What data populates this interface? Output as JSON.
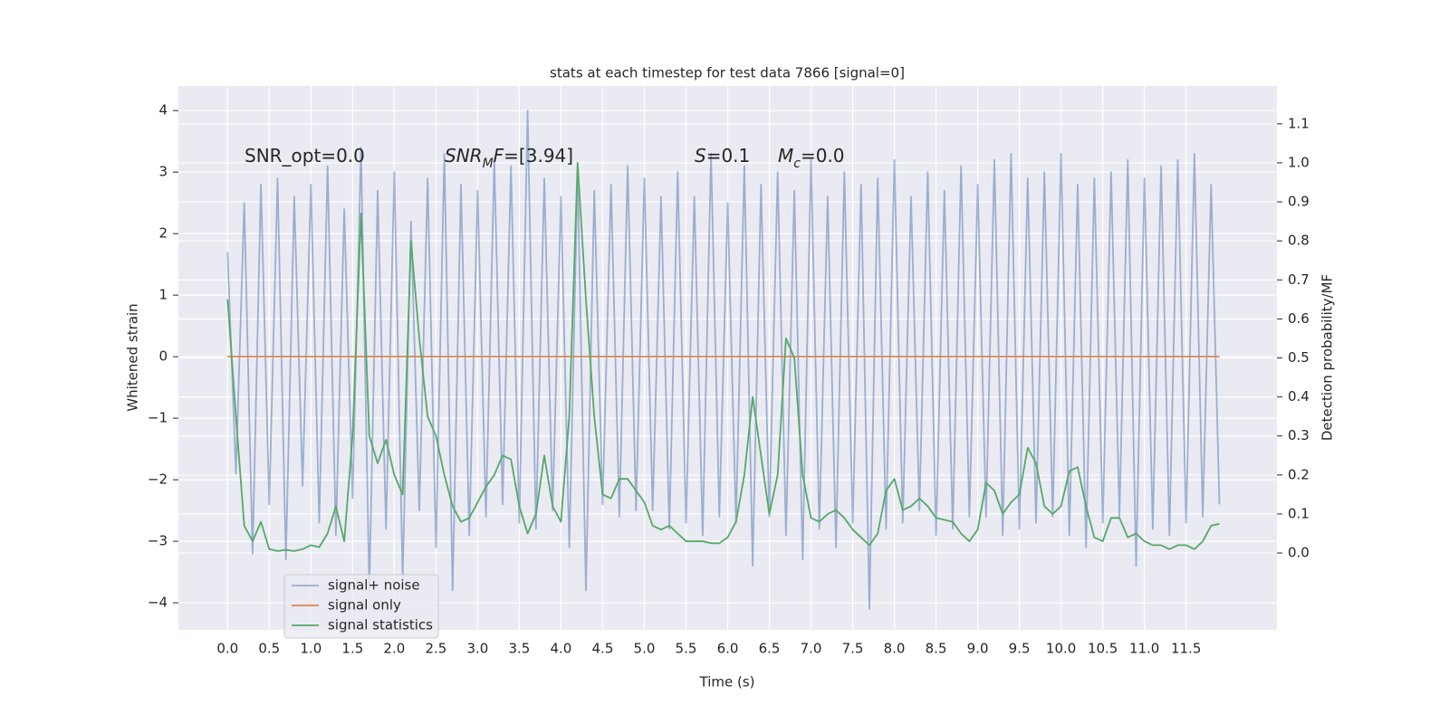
{
  "chart_data": {
    "type": "line",
    "title": "stats at each timestep for test data 7866 [signal=0]",
    "xlabel": "Time (s)",
    "ylabel": "Whitened strain",
    "y2label": "Detection probability/MF",
    "x": [
      0.0,
      0.1,
      0.2,
      0.3,
      0.4,
      0.5,
      0.6,
      0.7,
      0.8,
      0.9,
      1.0,
      1.1,
      1.2,
      1.3,
      1.4,
      1.5,
      1.6,
      1.7,
      1.8,
      1.9,
      2.0,
      2.1,
      2.2,
      2.3,
      2.4,
      2.5,
      2.6,
      2.7,
      2.8,
      2.9,
      3.0,
      3.1,
      3.2,
      3.3,
      3.4,
      3.5,
      3.6,
      3.7,
      3.8,
      3.9,
      4.0,
      4.1,
      4.2,
      4.3,
      4.4,
      4.5,
      4.6,
      4.7,
      4.8,
      4.9,
      5.0,
      5.1,
      5.2,
      5.3,
      5.4,
      5.5,
      5.6,
      5.7,
      5.8,
      5.9,
      6.0,
      6.1,
      6.2,
      6.3,
      6.4,
      6.5,
      6.6,
      6.7,
      6.8,
      6.9,
      7.0,
      7.1,
      7.2,
      7.3,
      7.4,
      7.5,
      7.6,
      7.7,
      7.8,
      7.9,
      8.0,
      8.1,
      8.2,
      8.3,
      8.4,
      8.5,
      8.6,
      8.7,
      8.8,
      8.9,
      9.0,
      9.1,
      9.2,
      9.3,
      9.4,
      9.5,
      9.6,
      9.7,
      9.8,
      9.9,
      10.0,
      10.1,
      10.2,
      10.3,
      10.4,
      10.5,
      10.6,
      10.7,
      10.8,
      10.9,
      11.0,
      11.1,
      11.2,
      11.3,
      11.4,
      11.5,
      11.6,
      11.7,
      11.8,
      11.9
    ],
    "series": [
      {
        "name": "signal+ noise",
        "color": "#4c72b0",
        "opacity": 0.5,
        "axis": "y",
        "values": [
          1.7,
          -1.9,
          2.5,
          -3.2,
          2.8,
          -2.4,
          2.9,
          -3.3,
          2.6,
          -2.1,
          2.8,
          -2.7,
          3.1,
          -2.9,
          2.4,
          -2.3,
          3.4,
          -3.8,
          2.7,
          -2.8,
          3.0,
          -3.6,
          2.2,
          -2.5,
          2.9,
          -3.1,
          3.3,
          -3.8,
          2.8,
          -2.9,
          2.7,
          -2.6,
          3.2,
          -2.4,
          3.1,
          -2.7,
          4.0,
          -2.8,
          2.9,
          -2.5,
          2.6,
          -3.1,
          3.0,
          -3.8,
          2.7,
          -2.4,
          2.8,
          -2.6,
          3.1,
          -2.5,
          2.9,
          -2.5,
          2.6,
          -2.8,
          3.0,
          -2.7,
          2.6,
          -2.9,
          3.3,
          -2.6,
          2.5,
          -2.7,
          3.1,
          -3.4,
          2.8,
          -2.6,
          3.0,
          -2.9,
          2.7,
          -3.3,
          3.2,
          -2.8,
          2.6,
          -3.1,
          3.0,
          -2.7,
          2.8,
          -4.1,
          2.9,
          -2.8,
          3.2,
          -2.7,
          2.6,
          -2.5,
          3.0,
          -2.9,
          2.7,
          -2.8,
          3.1,
          -2.6,
          2.8,
          -2.6,
          3.2,
          -2.9,
          3.3,
          -2.8,
          2.9,
          -2.7,
          3.0,
          -2.6,
          3.3,
          -2.9,
          2.8,
          -3.1,
          2.9,
          -2.7,
          3.0,
          -2.6,
          3.2,
          -3.4,
          2.9,
          -2.8,
          3.1,
          -2.9,
          3.2,
          -2.7,
          3.3,
          -2.6,
          2.8,
          -2.4
        ]
      },
      {
        "name": "signal only",
        "color": "#dd8452",
        "opacity": 1,
        "axis": "y",
        "values": [
          0,
          0,
          0,
          0,
          0,
          0,
          0,
          0,
          0,
          0,
          0,
          0,
          0,
          0,
          0,
          0,
          0,
          0,
          0,
          0,
          0,
          0,
          0,
          0,
          0,
          0,
          0,
          0,
          0,
          0,
          0,
          0,
          0,
          0,
          0,
          0,
          0,
          0,
          0,
          0,
          0,
          0,
          0,
          0,
          0,
          0,
          0,
          0,
          0,
          0,
          0,
          0,
          0,
          0,
          0,
          0,
          0,
          0,
          0,
          0,
          0,
          0,
          0,
          0,
          0,
          0,
          0,
          0,
          0,
          0,
          0,
          0,
          0,
          0,
          0,
          0,
          0,
          0,
          0,
          0,
          0,
          0,
          0,
          0,
          0,
          0,
          0,
          0,
          0,
          0,
          0,
          0,
          0,
          0,
          0,
          0,
          0,
          0,
          0,
          0,
          0,
          0,
          0,
          0,
          0,
          0,
          0,
          0,
          0,
          0,
          0,
          0,
          0,
          0,
          0,
          0,
          0,
          0,
          0,
          0
        ]
      },
      {
        "name": "signal statistics",
        "color": "#55a868",
        "opacity": 1,
        "axis": "y2",
        "values": [
          0.65,
          0.35,
          0.07,
          0.03,
          0.08,
          0.01,
          0.005,
          0.008,
          0.005,
          0.01,
          0.02,
          0.015,
          0.05,
          0.12,
          0.03,
          0.3,
          0.87,
          0.3,
          0.23,
          0.29,
          0.2,
          0.15,
          0.8,
          0.55,
          0.35,
          0.3,
          0.2,
          0.12,
          0.08,
          0.09,
          0.13,
          0.17,
          0.2,
          0.25,
          0.24,
          0.12,
          0.05,
          0.1,
          0.25,
          0.12,
          0.08,
          0.35,
          1.0,
          0.65,
          0.35,
          0.15,
          0.14,
          0.19,
          0.19,
          0.16,
          0.13,
          0.07,
          0.06,
          0.07,
          0.05,
          0.03,
          0.03,
          0.03,
          0.025,
          0.025,
          0.04,
          0.08,
          0.2,
          0.4,
          0.25,
          0.1,
          0.2,
          0.55,
          0.5,
          0.2,
          0.09,
          0.08,
          0.1,
          0.11,
          0.09,
          0.06,
          0.04,
          0.02,
          0.05,
          0.16,
          0.19,
          0.11,
          0.12,
          0.14,
          0.12,
          0.09,
          0.085,
          0.08,
          0.05,
          0.03,
          0.06,
          0.18,
          0.16,
          0.1,
          0.13,
          0.15,
          0.27,
          0.23,
          0.12,
          0.1,
          0.12,
          0.21,
          0.22,
          0.12,
          0.04,
          0.03,
          0.09,
          0.09,
          0.04,
          0.05,
          0.03,
          0.02,
          0.02,
          0.01,
          0.02,
          0.02,
          0.01,
          0.03,
          0.07,
          0.075
        ]
      }
    ],
    "xlim": [
      -0.59,
      12.59
    ],
    "ylim": [
      -4.44,
      4.4
    ],
    "y2lim": [
      -0.197,
      1.197
    ],
    "xticks": [
      {
        "value": 0,
        "label": "0.0"
      },
      {
        "value": 0.5,
        "label": "0.5"
      },
      {
        "value": 1,
        "label": "1.0"
      },
      {
        "value": 1.5,
        "label": "1.5"
      },
      {
        "value": 2,
        "label": "2.0"
      },
      {
        "value": 2.5,
        "label": "2.5"
      },
      {
        "value": 3,
        "label": "3.0"
      },
      {
        "value": 3.5,
        "label": "3.5"
      },
      {
        "value": 4,
        "label": "4.0"
      },
      {
        "value": 4.5,
        "label": "4.5"
      },
      {
        "value": 5,
        "label": "5.0"
      },
      {
        "value": 5.5,
        "label": "5.5"
      },
      {
        "value": 6,
        "label": "6.0"
      },
      {
        "value": 6.5,
        "label": "6.5"
      },
      {
        "value": 7,
        "label": "7.0"
      },
      {
        "value": 7.5,
        "label": "7.5"
      },
      {
        "value": 8,
        "label": "8.0"
      },
      {
        "value": 8.5,
        "label": "8.5"
      },
      {
        "value": 9,
        "label": "9.0"
      },
      {
        "value": 9.5,
        "label": "9.5"
      },
      {
        "value": 10,
        "label": "10.0"
      },
      {
        "value": 10.5,
        "label": "10.5"
      },
      {
        "value": 11,
        "label": "11.0"
      },
      {
        "value": 11.5,
        "label": "11.5"
      }
    ],
    "yticks": [
      {
        "value": -4,
        "label": "−4"
      },
      {
        "value": -3,
        "label": "−3"
      },
      {
        "value": -2,
        "label": "−2"
      },
      {
        "value": -1,
        "label": "−1"
      },
      0,
      1,
      2,
      3,
      4
    ],
    "y2ticks": [
      {
        "value": 0,
        "label": "0.0"
      },
      {
        "value": 0.1,
        "label": "0.1"
      },
      {
        "value": 0.2,
        "label": "0.2"
      },
      {
        "value": 0.3,
        "label": "0.3"
      },
      {
        "value": 0.4,
        "label": "0.4"
      },
      {
        "value": 0.5,
        "label": "0.5"
      },
      {
        "value": 0.6,
        "label": "0.6"
      },
      {
        "value": 0.7,
        "label": "0.7"
      },
      {
        "value": 0.8,
        "label": "0.8"
      },
      {
        "value": 0.9,
        "label": "0.9"
      },
      {
        "value": 1,
        "label": "1.0"
      },
      {
        "value": 1.1,
        "label": "1.1"
      }
    ],
    "grid": true,
    "legend": "lower left",
    "annotations": [
      {
        "parts": [
          {
            "text": "SNR_opt=0.0"
          }
        ]
      },
      {
        "parts": [
          {
            "text": "SNR",
            "italic": true
          },
          {
            "text": "M",
            "italic": true,
            "sub": true
          },
          {
            "text": "F",
            "italic": true
          },
          {
            "text": "=[3.94]"
          }
        ]
      },
      {
        "parts": [
          {
            "text": "S",
            "italic": true
          },
          {
            "text": "=0.1"
          }
        ]
      },
      {
        "parts": [
          {
            "text": "M",
            "italic": true
          },
          {
            "text": "c",
            "italic": true,
            "sub": true
          },
          {
            "text": "=0.0"
          }
        ]
      }
    ]
  }
}
